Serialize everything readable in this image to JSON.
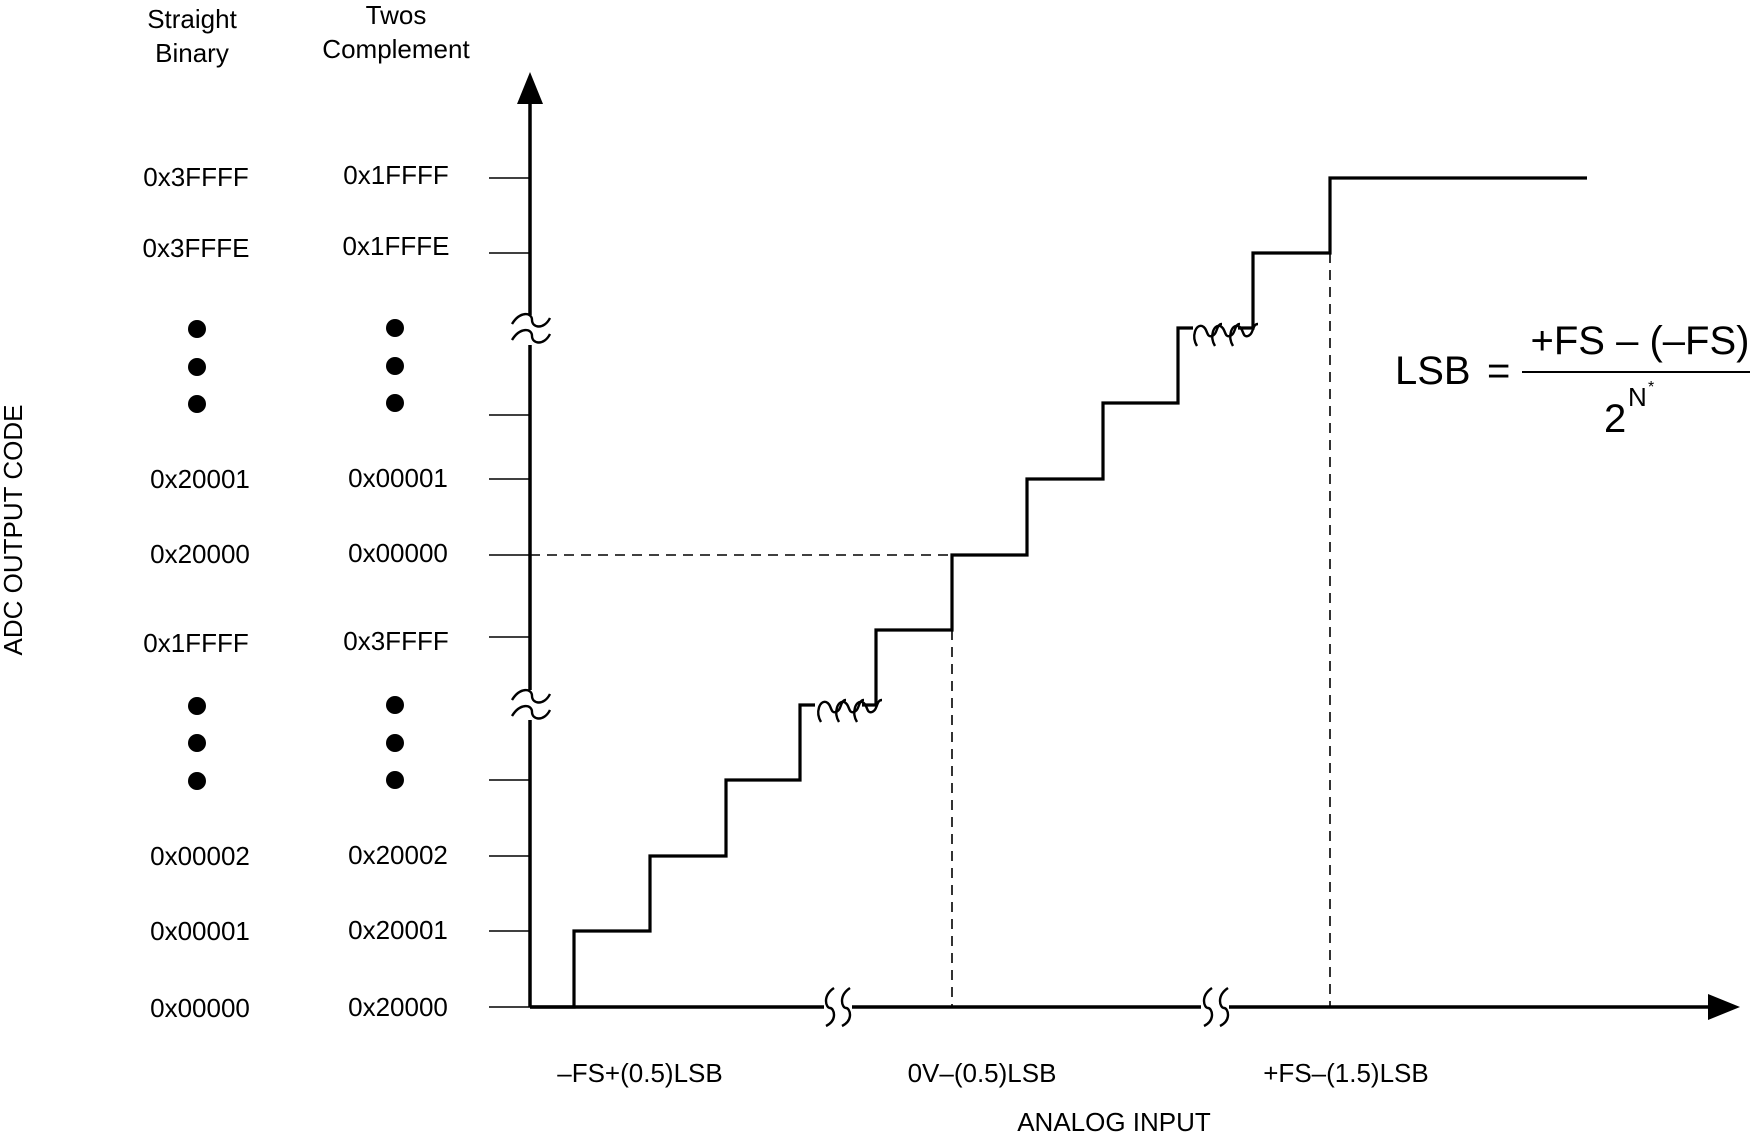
{
  "headers": {
    "straight_binary": [
      "Straight",
      "Binary"
    ],
    "twos_complement": [
      "Twos",
      "Complement"
    ]
  },
  "y_axis_title": "ADC OUTPUT CODE",
  "x_axis_title": "ANALOG INPUT",
  "code_rows": [
    {
      "straight": "0x3FFFF",
      "twos": "0x1FFFF"
    },
    {
      "straight": "0x3FFFE",
      "twos": "0x1FFFE"
    },
    {
      "straight": "0x20001",
      "twos": "0x00001"
    },
    {
      "straight": "0x20000",
      "twos": "0x00000"
    },
    {
      "straight": "0x1FFFF",
      "twos": "0x3FFFF"
    },
    {
      "straight": "0x00002",
      "twos": "0x20002"
    },
    {
      "straight": "0x00001",
      "twos": "0x20001"
    },
    {
      "straight": "0x00000",
      "twos": "0x20000"
    }
  ],
  "x_labels": [
    "–FS+(0.5)LSB",
    "0V–(0.5)LSB",
    "+FS–(1.5)LSB"
  ],
  "formula": {
    "lhs": "LSB",
    "equals": "=",
    "numerator": "+FS – (–FS)",
    "denominator_base": "2",
    "denominator_exp": "N",
    "footnote_mark": "*"
  }
}
